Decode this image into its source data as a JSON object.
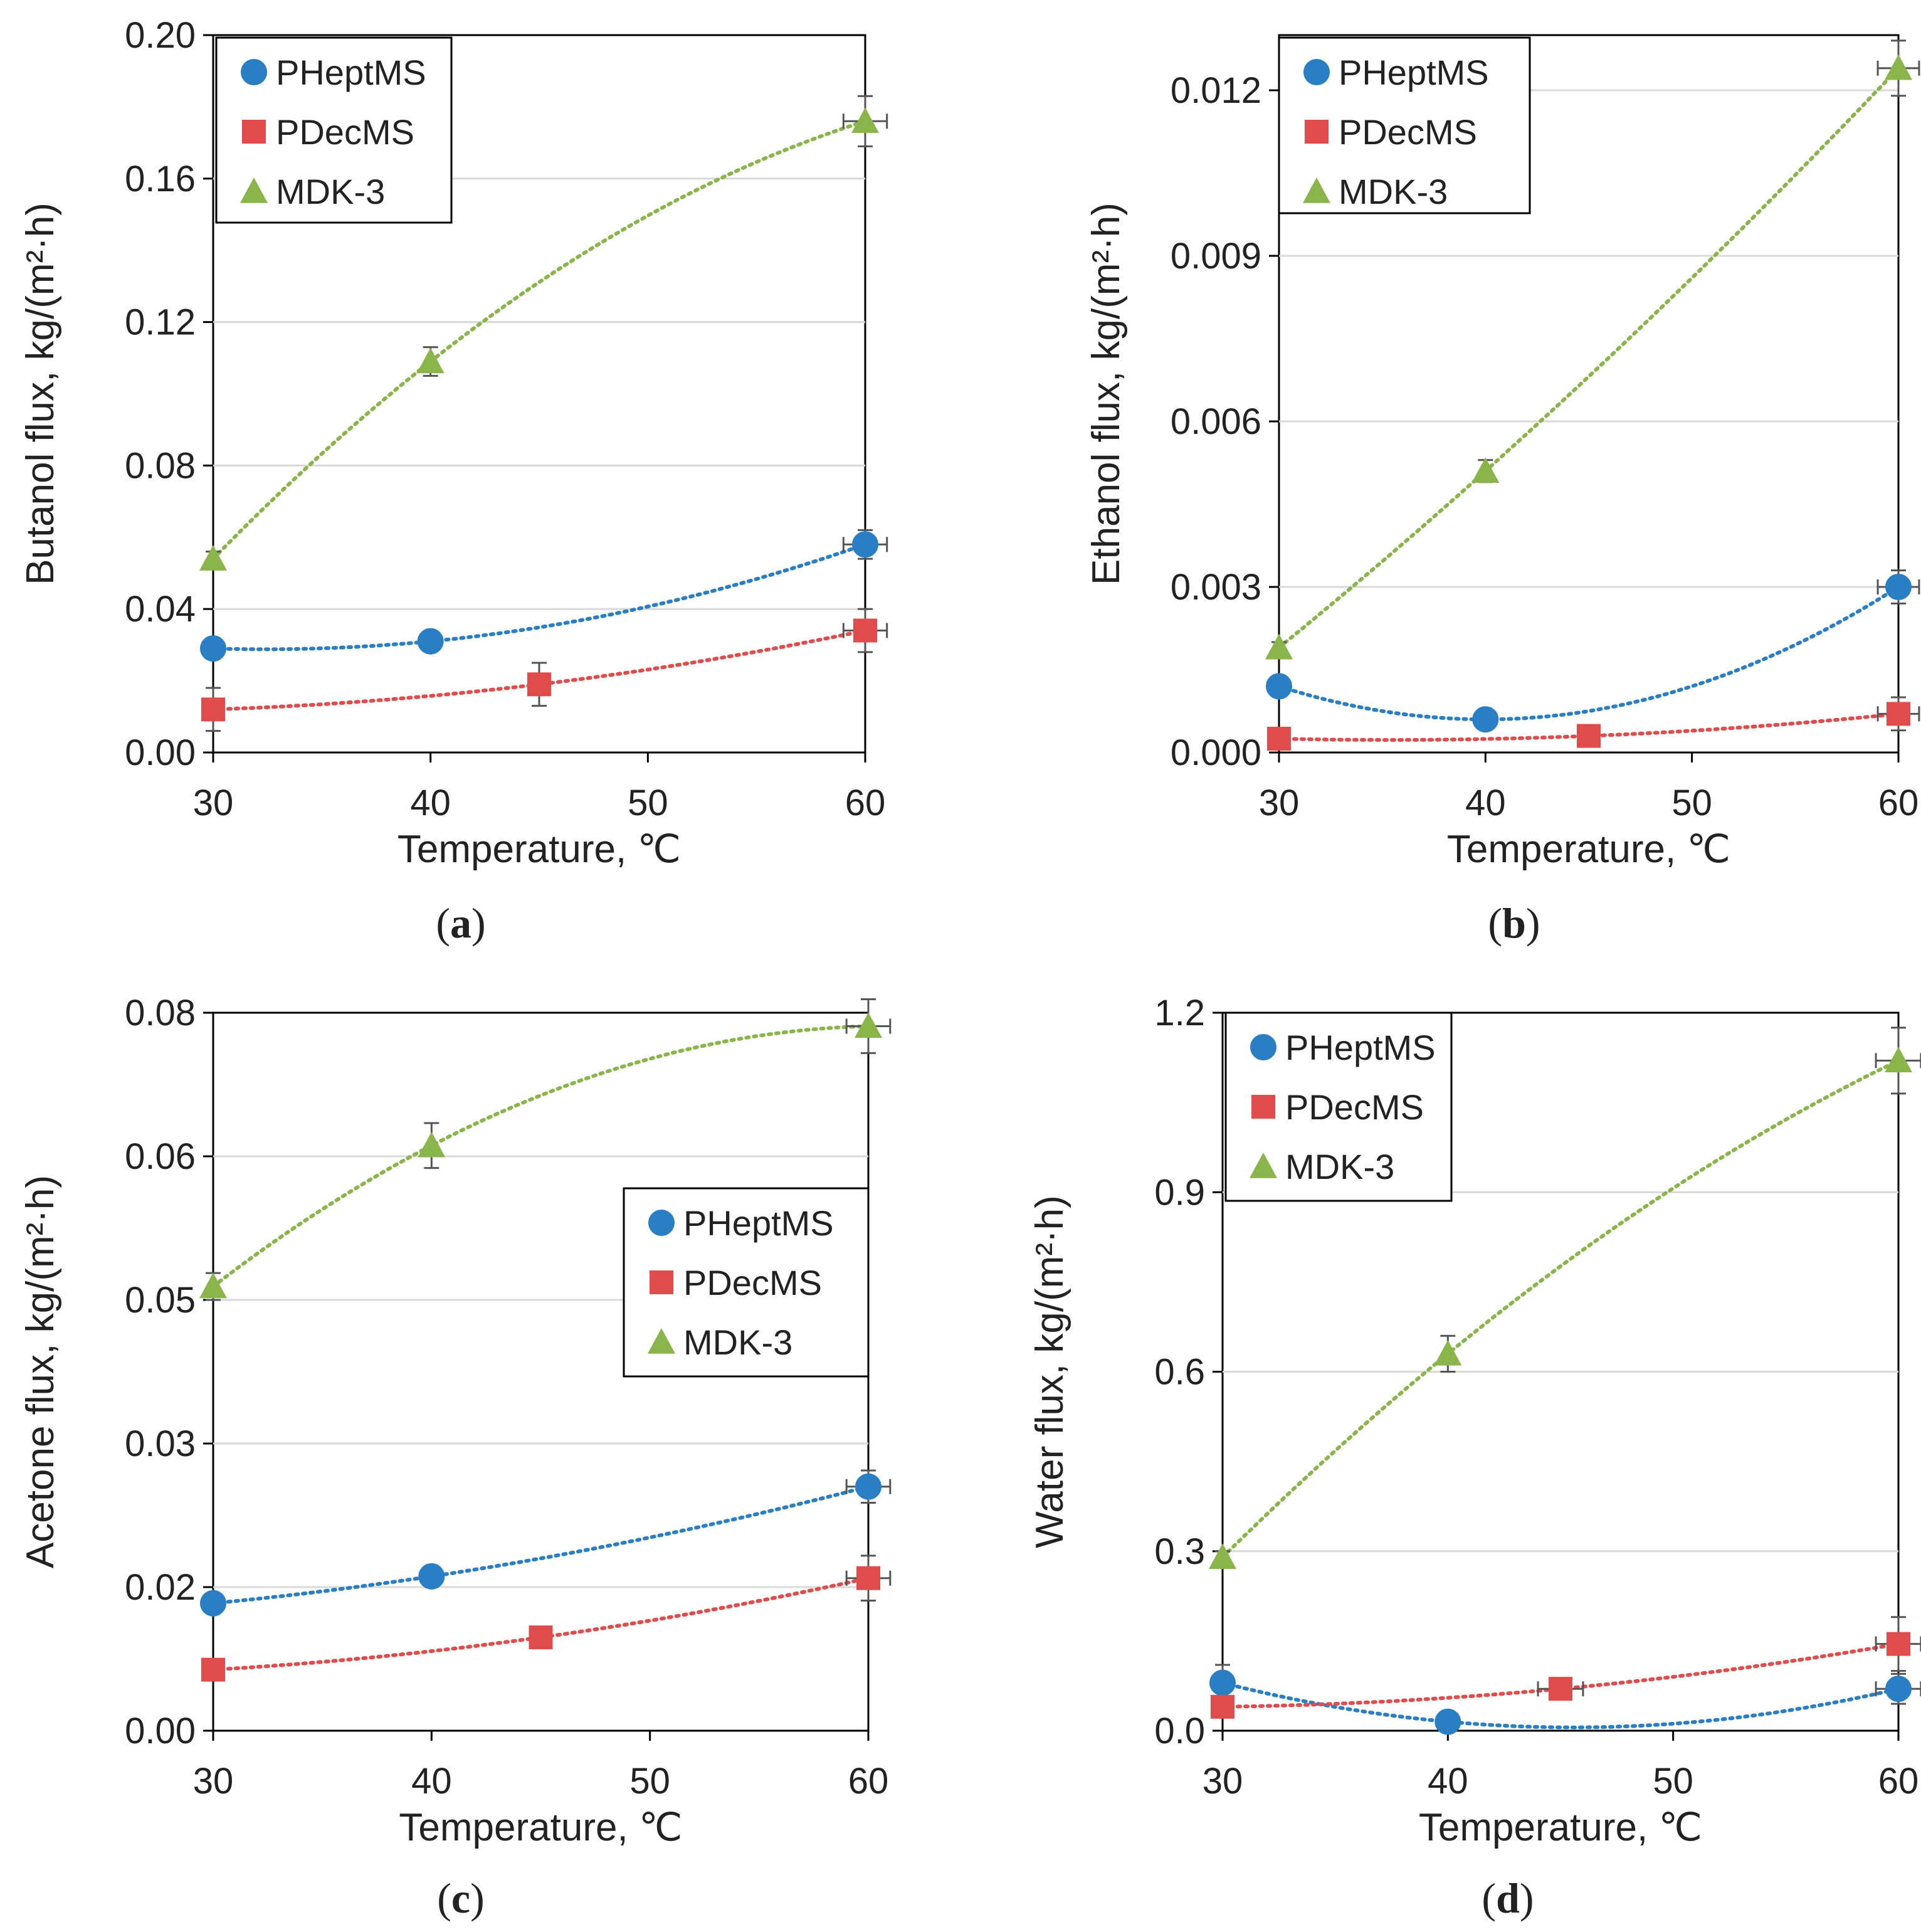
{
  "chart_data": [
    {
      "id": "a",
      "type": "scatter",
      "panel_label": "a",
      "xlabel": "Temperature, ℃",
      "ylabel": "Butanol flux, kg/(m²·h)",
      "xlim": [
        30,
        60
      ],
      "ylim": [
        0,
        0.2
      ],
      "xticks": [
        "30",
        "40",
        "50",
        "60"
      ],
      "yticks": [
        "0.00",
        "0.04",
        "0.08",
        "0.12",
        "0.16",
        "0.20"
      ],
      "grid": true,
      "legend_position": "top-left",
      "series": [
        {
          "name": "PHeptMS",
          "marker": "circle",
          "color": "#2a7ec4",
          "x": [
            30,
            40,
            60
          ],
          "y": [
            0.029,
            0.031,
            0.058
          ],
          "yerr": [
            0.002,
            0.002,
            0.004
          ],
          "xerr": [
            0,
            0,
            1
          ]
        },
        {
          "name": "PDecMS",
          "marker": "square",
          "color": "#e04b4b",
          "x": [
            30,
            45,
            60
          ],
          "y": [
            0.012,
            0.019,
            0.034
          ],
          "yerr": [
            0.006,
            0.006,
            0.006
          ],
          "xerr": [
            0,
            0,
            1
          ]
        },
        {
          "name": "MDK-3",
          "marker": "triangle",
          "color": "#8ab54a",
          "x": [
            30,
            40,
            60
          ],
          "y": [
            0.054,
            0.109,
            0.176
          ],
          "yerr": [
            0.002,
            0.004,
            0.007
          ],
          "xerr": [
            0,
            0,
            1
          ]
        }
      ]
    },
    {
      "id": "b",
      "type": "scatter",
      "panel_label": "b",
      "xlabel": "Temperature, ℃",
      "ylabel": "Ethanol flux, kg/(m²·h)",
      "xlim": [
        30,
        60
      ],
      "ylim": [
        0,
        0.013
      ],
      "xticks": [
        "30",
        "40",
        "50",
        "60"
      ],
      "yticks": [
        "0.000",
        "0.003",
        "0.006",
        "0.009",
        "0.012"
      ],
      "grid": true,
      "legend_position": "top-left",
      "series": [
        {
          "name": "PHeptMS",
          "marker": "circle",
          "color": "#2a7ec4",
          "x": [
            30,
            40,
            60
          ],
          "y": [
            0.0012,
            0.0006,
            0.003
          ],
          "yerr": [
            0.0001,
            0.0001,
            0.0003
          ],
          "xerr": [
            0,
            0,
            1
          ]
        },
        {
          "name": "PDecMS",
          "marker": "square",
          "color": "#e04b4b",
          "x": [
            30,
            45,
            60
          ],
          "y": [
            0.00025,
            0.0003,
            0.0007
          ],
          "yerr": [
            0.0001,
            0.0001,
            0.0003
          ],
          "xerr": [
            0,
            0,
            1
          ]
        },
        {
          "name": "MDK-3",
          "marker": "triangle",
          "color": "#8ab54a",
          "x": [
            30,
            40,
            60
          ],
          "y": [
            0.0019,
            0.0051,
            0.0124
          ],
          "yerr": [
            0.0001,
            0.0002,
            0.0005
          ],
          "xerr": [
            0,
            0,
            1
          ]
        }
      ]
    },
    {
      "id": "c",
      "type": "scatter",
      "panel_label": "c",
      "xlabel": "Temperature, ℃",
      "ylabel": "Acetone flux, kg/(m²·h)",
      "xlim": [
        30,
        60
      ],
      "ylim": [
        0,
        0.08
      ],
      "xticks": [
        "30",
        "40",
        "50",
        "60"
      ],
      "yticks": [
        "0.00",
        "0.02",
        "0.03",
        "0.05",
        "0.06",
        "0.08"
      ],
      "ytick_positions": [
        0,
        0.016,
        0.032,
        0.048,
        0.064,
        0.08
      ],
      "grid": true,
      "legend_position": "center-right",
      "series": [
        {
          "name": "PHeptMS",
          "marker": "circle",
          "color": "#2a7ec4",
          "x": [
            30,
            40,
            60
          ],
          "y": [
            0.0142,
            0.0172,
            0.0272
          ],
          "yerr": [
            0.0003,
            0.0004,
            0.0018
          ],
          "xerr": [
            0,
            0,
            1
          ]
        },
        {
          "name": "PDecMS",
          "marker": "square",
          "color": "#e04b4b",
          "x": [
            30,
            45,
            60
          ],
          "y": [
            0.0068,
            0.0104,
            0.017
          ],
          "yerr": [
            0.0002,
            0.0005,
            0.0025
          ],
          "xerr": [
            0,
            0,
            1
          ]
        },
        {
          "name": "MDK-3",
          "marker": "triangle",
          "color": "#8ab54a",
          "x": [
            30,
            40,
            60
          ],
          "y": [
            0.0495,
            0.0652,
            0.0785
          ],
          "yerr": [
            0.0015,
            0.0025,
            0.003
          ],
          "xerr": [
            0,
            0,
            1
          ]
        }
      ]
    },
    {
      "id": "d",
      "type": "scatter",
      "panel_label": "d",
      "xlabel": "Temperature, ℃",
      "ylabel": "Water flux, kg/(m²·h)",
      "xlim": [
        30,
        60
      ],
      "ylim": [
        0,
        1.2
      ],
      "xticks": [
        "30",
        "40",
        "50",
        "60"
      ],
      "yticks": [
        "0.0",
        "0.3",
        "0.6",
        "0.9",
        "1.2"
      ],
      "grid": true,
      "legend_position": "top-left",
      "series": [
        {
          "name": "PHeptMS",
          "marker": "circle",
          "color": "#2a7ec4",
          "x": [
            30,
            40,
            60
          ],
          "y": [
            0.08,
            0.015,
            0.07
          ],
          "yerr": [
            0.03,
            0.01,
            0.025
          ],
          "xerr": [
            0,
            0,
            1
          ]
        },
        {
          "name": "PDecMS",
          "marker": "square",
          "color": "#e04b4b",
          "x": [
            30,
            45,
            60
          ],
          "y": [
            0.04,
            0.07,
            0.145
          ],
          "yerr": [
            0.01,
            0.01,
            0.045
          ],
          "xerr": [
            0,
            1,
            1
          ]
        },
        {
          "name": "MDK-3",
          "marker": "triangle",
          "color": "#8ab54a",
          "x": [
            30,
            40,
            60
          ],
          "y": [
            0.29,
            0.63,
            1.12
          ],
          "yerr": [
            0.01,
            0.03,
            0.055
          ],
          "xerr": [
            0,
            0,
            1
          ]
        }
      ]
    }
  ]
}
